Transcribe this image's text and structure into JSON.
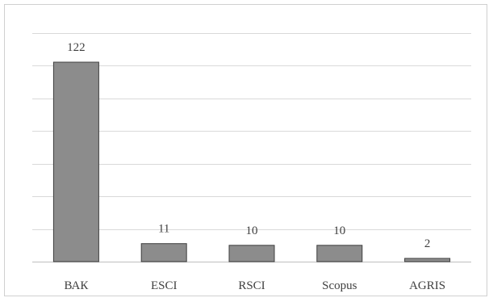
{
  "chart_data": {
    "type": "bar",
    "categories": [
      "ВАК",
      "ESCI",
      "RSCI",
      "Scopus",
      "AGRIS"
    ],
    "values": [
      122,
      11,
      10,
      10,
      2
    ],
    "title": "",
    "xlabel": "",
    "ylabel": "",
    "ylim": [
      0,
      140
    ],
    "grid": true,
    "legend": "none",
    "colors": {
      "bar_fill": "#8c8c8c",
      "bar_stroke": "#3f3f3f",
      "grid": "#d9d9d9",
      "text": "#404040"
    }
  }
}
